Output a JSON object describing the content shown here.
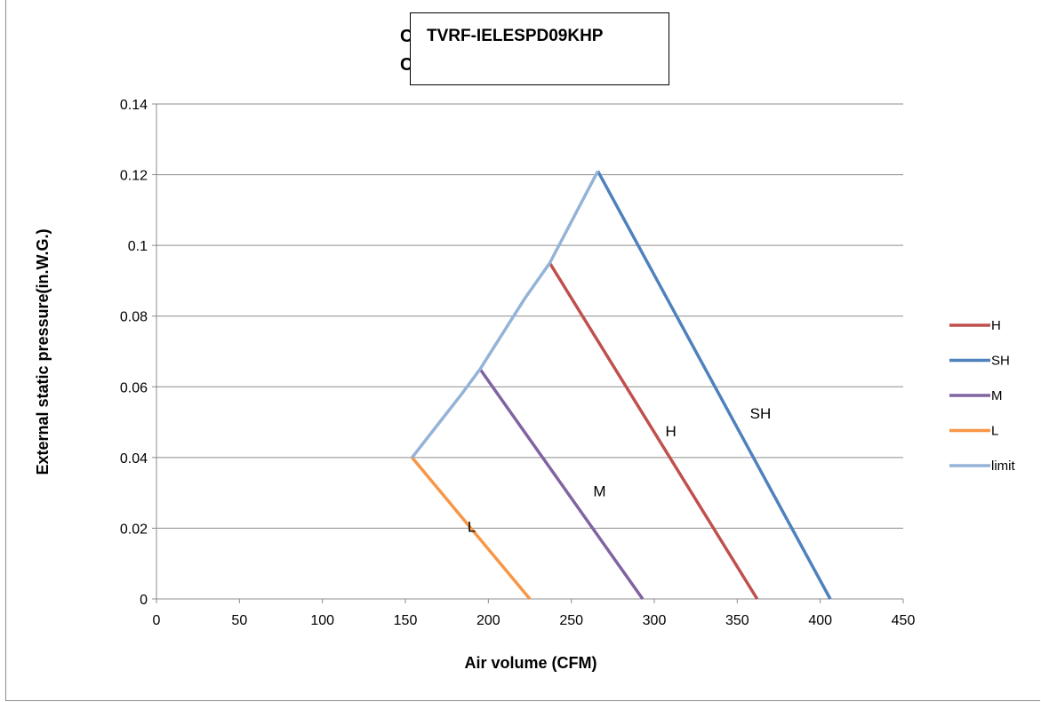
{
  "chart_data": {
    "type": "line",
    "title": "TVRF-IELESPD09KHP",
    "title_overlap_glyphs": [
      "C",
      "C"
    ],
    "xlabel": "Air volume (CFM)",
    "ylabel": "External static pressure(in.W.G.)",
    "xlim": [
      0,
      450
    ],
    "ylim": [
      0,
      0.14
    ],
    "x_ticks": [
      "0",
      "50",
      "100",
      "150",
      "200",
      "250",
      "300",
      "350",
      "400",
      "450"
    ],
    "y_ticks": [
      "0",
      "0.02",
      "0.04",
      "0.06",
      "0.08",
      "0.1",
      "0.12",
      "0.14"
    ],
    "grid": "horizontal",
    "legend_position": "right",
    "series": [
      {
        "name": "H",
        "color": "#c0504d",
        "points": [
          [
            237,
            0.095
          ],
          [
            362,
            0
          ]
        ],
        "label": "H",
        "label_at": [
          310,
          0.046
        ]
      },
      {
        "name": "SH",
        "color": "#4f81bd",
        "points": [
          [
            266,
            0.121
          ],
          [
            406,
            0
          ]
        ],
        "label": "SH",
        "label_at": [
          364,
          0.051
        ]
      },
      {
        "name": "M",
        "color": "#8064a2",
        "points": [
          [
            195,
            0.065
          ],
          [
            293,
            0
          ]
        ],
        "label": "M",
        "label_at": [
          267,
          0.029
        ]
      },
      {
        "name": "L",
        "color": "#f79646",
        "points": [
          [
            154,
            0.04
          ],
          [
            225,
            0
          ]
        ],
        "label": "L",
        "label_at": [
          190,
          0.019
        ]
      },
      {
        "name": "limit",
        "color": "#95b3d7",
        "points": [
          [
            154,
            0.04
          ],
          [
            184,
            0.058
          ],
          [
            195,
            0.065
          ],
          [
            222,
            0.085
          ],
          [
            237,
            0.095
          ],
          [
            266,
            0.121
          ]
        ]
      }
    ]
  }
}
